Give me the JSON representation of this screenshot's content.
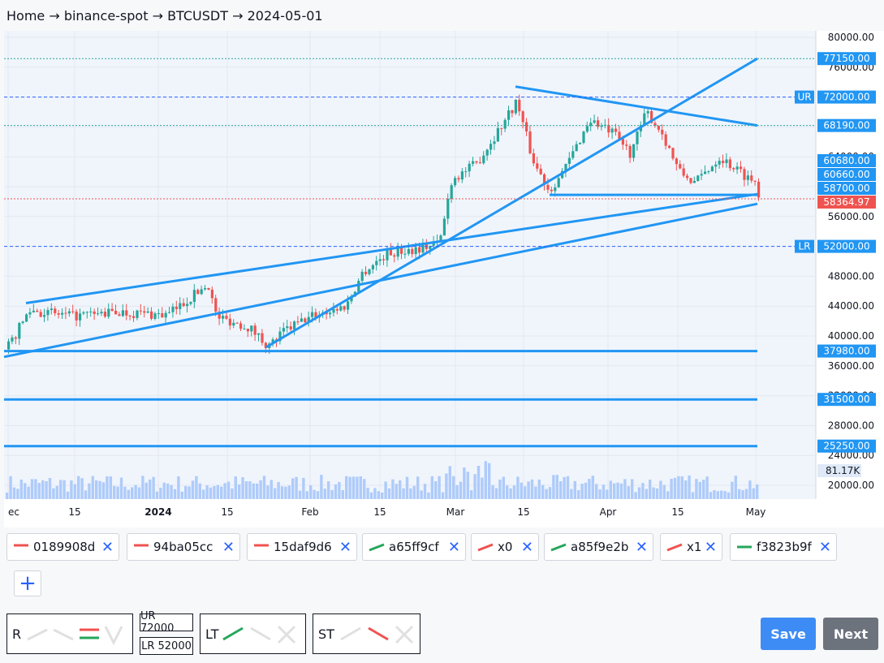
{
  "breadcrumb": {
    "text": "Home → binance-spot → BTCUSDT → 2024-05-01"
  },
  "chart_data": {
    "type": "candlestick",
    "symbol": "BTCUSDT",
    "price_axis_ticks": [
      80000,
      76000,
      72000,
      68000,
      64000,
      60000,
      56000,
      52000,
      48000,
      44000,
      40000,
      36000,
      32000,
      28000,
      24000,
      20000
    ],
    "date_axis_ticks": [
      "ec",
      "15",
      "2024",
      "15",
      "Feb",
      "15",
      "Mar",
      "15",
      "Apr",
      "15",
      "May"
    ],
    "horizontal_levels": [
      {
        "value": 72000,
        "label": "72000.00",
        "tag": "UR",
        "style": "dashed"
      },
      {
        "value": 52000,
        "label": "52000.00",
        "tag": "LR",
        "style": "dashed"
      },
      {
        "value": 77150,
        "label": "77150.00",
        "style": "dotted"
      },
      {
        "value": 68190,
        "label": "68190.00",
        "style": "dotted"
      },
      {
        "value": 60680,
        "label": "60680.00"
      },
      {
        "value": 60660,
        "label": "60660.00"
      },
      {
        "value": 58700,
        "label": "58700.00"
      },
      {
        "value": 58364.97,
        "label": "58364.97",
        "style": "last-price"
      },
      {
        "value": 37980,
        "label": "37980.00",
        "style": "solid"
      },
      {
        "value": 31500,
        "label": "31500.00",
        "style": "solid"
      },
      {
        "value": 25250,
        "label": "25250.00",
        "style": "solid"
      }
    ],
    "volume_label": "81.17K",
    "colors": {
      "up": "#26a69a",
      "down": "#ef5350",
      "line": "#2196f3",
      "volume": "#aecbfa"
    }
  },
  "tags": [
    {
      "label": "0189908d",
      "color": "#ef5350"
    },
    {
      "label": "94ba05cc",
      "color": "#ef5350"
    },
    {
      "label": "15daf9d6",
      "color": "#ef5350"
    },
    {
      "label": "a65ff9cf",
      "color": "#26a65b"
    },
    {
      "label": "x0",
      "color": "#ef5350"
    },
    {
      "label": "a85f9e2b",
      "color": "#26a65b"
    },
    {
      "label": "x1",
      "color": "#ef5350"
    },
    {
      "label": "f3823b9f",
      "color": "#26a65b"
    }
  ],
  "tag_remove_glyph": "✕",
  "add_glyph": "+",
  "panels": {
    "r": {
      "label": "R"
    },
    "ur": {
      "label": "UR 72000"
    },
    "lr": {
      "label": "LR 52000"
    },
    "lt": {
      "label": "LT"
    },
    "st": {
      "label": "ST"
    }
  },
  "buttons": {
    "save": "Save",
    "next": "Next"
  }
}
